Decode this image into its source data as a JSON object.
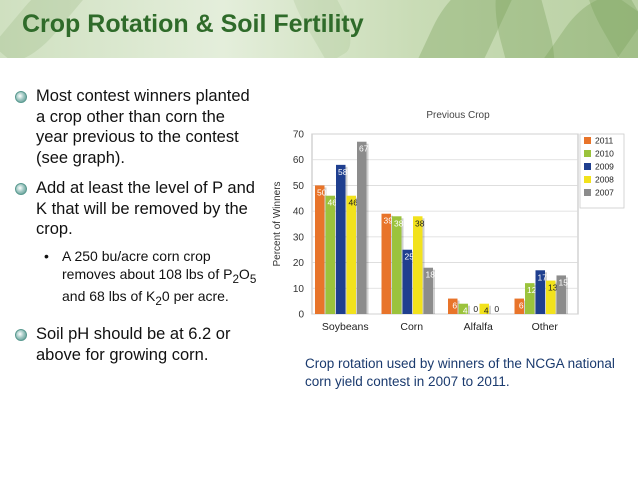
{
  "slide": {
    "title": "Crop Rotation & Soil Fertility",
    "bullets": [
      "Most contest winners planted a crop other than corn the year previous to the contest (see graph).",
      "Add at least the level of P and K that will be removed by the crop.",
      "Soil pH should be at 6.2 or above for growing corn."
    ],
    "sub_bullet": {
      "part1": "A 250 bu/acre corn crop removes about 108 lbs of P",
      "sub1": "2",
      "part2": "O",
      "sub2": "5",
      "part3": " and 68 lbs of K",
      "sub3": "2",
      "part4": "0 per acre."
    },
    "caption": "Crop rotation used by winners of the NCGA national corn yield contest in 2007 to 2011."
  },
  "chart_data": {
    "type": "bar",
    "title": "Previous Crop",
    "xlabel": "",
    "ylabel": "Percent of Winners",
    "ylim": [
      0,
      70
    ],
    "yticks": [
      0,
      10,
      20,
      30,
      40,
      50,
      60,
      70
    ],
    "categories": [
      "Soybeans",
      "Corn",
      "Alfalfa",
      "Other"
    ],
    "grid": true,
    "legend_position": "right",
    "series": [
      {
        "name": "2011",
        "color": "#e8742a",
        "values": [
          50,
          39,
          6,
          6
        ]
      },
      {
        "name": "2010",
        "color": "#9bc33c",
        "values": [
          46,
          38,
          4,
          12
        ]
      },
      {
        "name": "2009",
        "color": "#1f3f8f",
        "values": [
          58,
          25,
          0,
          17
        ]
      },
      {
        "name": "2008",
        "color": "#f2e21c",
        "values": [
          46,
          38,
          4,
          13
        ]
      },
      {
        "name": "2007",
        "color": "#8c8c8c",
        "values": [
          67,
          18,
          0,
          15
        ]
      }
    ]
  }
}
